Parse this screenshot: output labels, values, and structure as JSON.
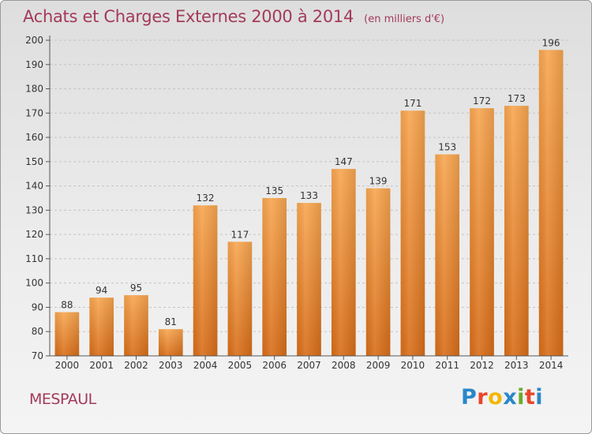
{
  "chart_data": {
    "type": "bar",
    "title": "Achats et Charges Externes 2000 à 2014",
    "unit": "(en milliers d'€)",
    "categories": [
      "2000",
      "2001",
      "2002",
      "2003",
      "2004",
      "2005",
      "2006",
      "2007",
      "2008",
      "2009",
      "2010",
      "2011",
      "2012",
      "2013",
      "2014"
    ],
    "values": [
      88,
      94,
      95,
      81,
      132,
      117,
      135,
      133,
      147,
      139,
      171,
      153,
      172,
      173,
      196
    ],
    "ylim": [
      70,
      200
    ],
    "yticks": [
      70,
      80,
      90,
      100,
      110,
      120,
      130,
      140,
      150,
      160,
      170,
      180,
      190,
      200
    ],
    "grid": true,
    "bar_color": "#f0903a",
    "title_color": "#a33a5a"
  },
  "commune": "MESPAUL",
  "logo": {
    "letters": [
      "P",
      "r",
      "o",
      "x",
      "i",
      "t",
      "i"
    ],
    "colors": [
      "#2a87c9",
      "#e8462c",
      "#f2b705",
      "#2a87c9",
      "#6aaa2c",
      "#e8462c",
      "#2a87c9"
    ]
  }
}
